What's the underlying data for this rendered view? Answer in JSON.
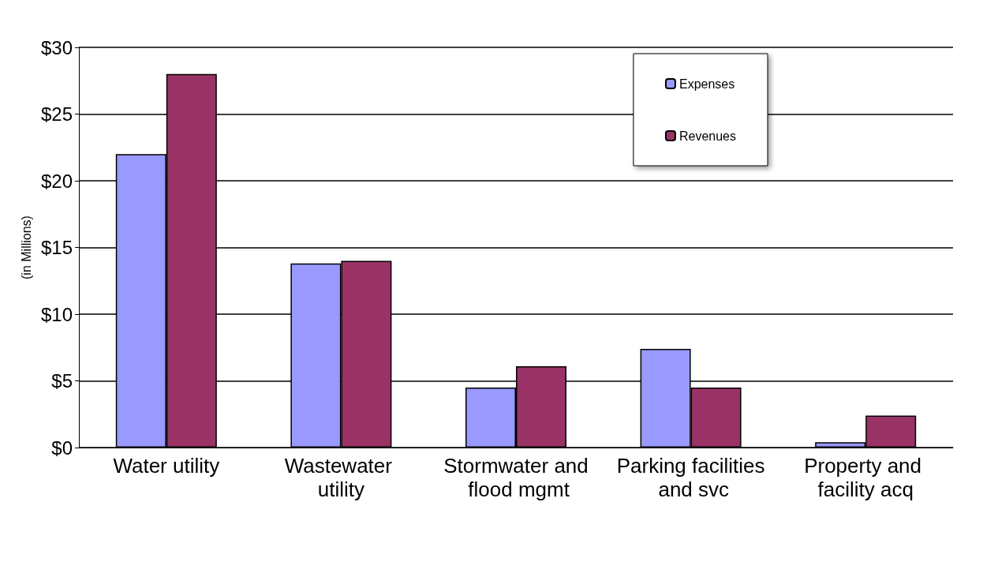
{
  "chart_data": {
    "type": "bar",
    "ylabel": "(in Millions)",
    "categories": [
      "Water utility",
      "Wastewater utility",
      "Stormwater and flood mgmt",
      "Parking facilities and svc",
      "Property and facility acq"
    ],
    "series": [
      {
        "name": "Expenses",
        "color": "#9999ff",
        "values": [
          22,
          13.8,
          4.5,
          7.4,
          0.4
        ]
      },
      {
        "name": "Revenues",
        "color": "#993366",
        "values": [
          28,
          14,
          6.1,
          4.5,
          2.4
        ]
      }
    ],
    "ylim": [
      0,
      30
    ],
    "yticks": [
      {
        "value": 0,
        "label": "$0"
      },
      {
        "value": 5,
        "label": "$5"
      },
      {
        "value": 10,
        "label": "$10"
      },
      {
        "value": 15,
        "label": "$15"
      },
      {
        "value": 20,
        "label": "$20"
      },
      {
        "value": 25,
        "label": "$25"
      },
      {
        "value": 30,
        "label": "$30"
      }
    ],
    "grid": "y",
    "legend": "top right"
  }
}
